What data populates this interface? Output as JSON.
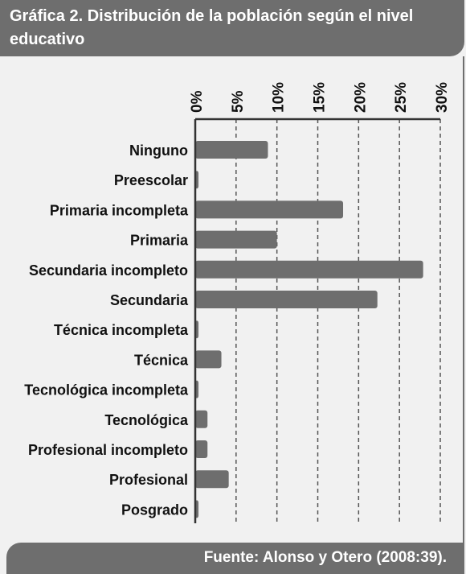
{
  "header": {
    "title": "Gráfica 2. Distribución de la población según el nivel educativo"
  },
  "footer": {
    "source": "Fuente: Alonso y Otero (2008:39)."
  },
  "colors": {
    "bar": "#6e6e6e",
    "axis": "#333333",
    "grid": "#555555",
    "panel": "#f1f1f1",
    "frame": "#6e6e6e"
  },
  "chart_data": {
    "type": "bar",
    "orientation": "horizontal",
    "title": "Gráfica 2. Distribución de la población según el nivel educativo",
    "xlabel": "",
    "ylabel": "",
    "xlim": [
      0,
      30
    ],
    "x_ticks": [
      0,
      5,
      10,
      15,
      20,
      25,
      30
    ],
    "x_tick_labels": [
      "0%",
      "5%",
      "10%",
      "15%",
      "20%",
      "25%",
      "30%"
    ],
    "grid": "vertical-dashed",
    "legend": "none",
    "categories": [
      "Ninguno",
      "Preescolar",
      "Primaria incompleta",
      "Primaria",
      "Secundaria incompleto",
      "Secundaria",
      "Técnica incompleta",
      "Técnica",
      "Tecnológica  incompleta",
      "Tecnológica",
      "Profesional incompleto",
      "Profesional",
      "Posgrado"
    ],
    "values": [
      8.9,
      0.4,
      18.1,
      10.0,
      27.9,
      22.3,
      0.4,
      3.2,
      0.4,
      1.5,
      1.5,
      4.1,
      0.4
    ]
  }
}
